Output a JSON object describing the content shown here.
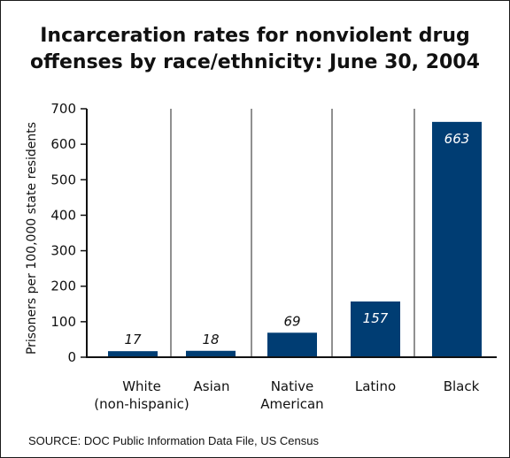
{
  "chart_data": {
    "type": "bar",
    "title_lines": [
      "Incarceration rates for nonviolent drug",
      "offenses by race/ethnicity: June 30, 2004"
    ],
    "ylabel": "Prisoners per 100,000 state residents",
    "xlabel": "",
    "ylim": [
      0,
      700
    ],
    "yticks": [
      0,
      100,
      200,
      300,
      400,
      500,
      600,
      700
    ],
    "grid": false,
    "categories": [
      {
        "lines": [
          "White",
          "(non-hispanic)"
        ]
      },
      {
        "lines": [
          "Asian"
        ]
      },
      {
        "lines": [
          "Native",
          "American"
        ]
      },
      {
        "lines": [
          "Latino"
        ]
      },
      {
        "lines": [
          "Black"
        ]
      }
    ],
    "values": [
      17,
      18,
      69,
      157,
      663
    ],
    "value_labels": [
      "17",
      "18",
      "69",
      "157",
      "663"
    ],
    "bar_color": "#003d73",
    "source": "SOURCE: DOC Public Information Data File, US Census"
  }
}
